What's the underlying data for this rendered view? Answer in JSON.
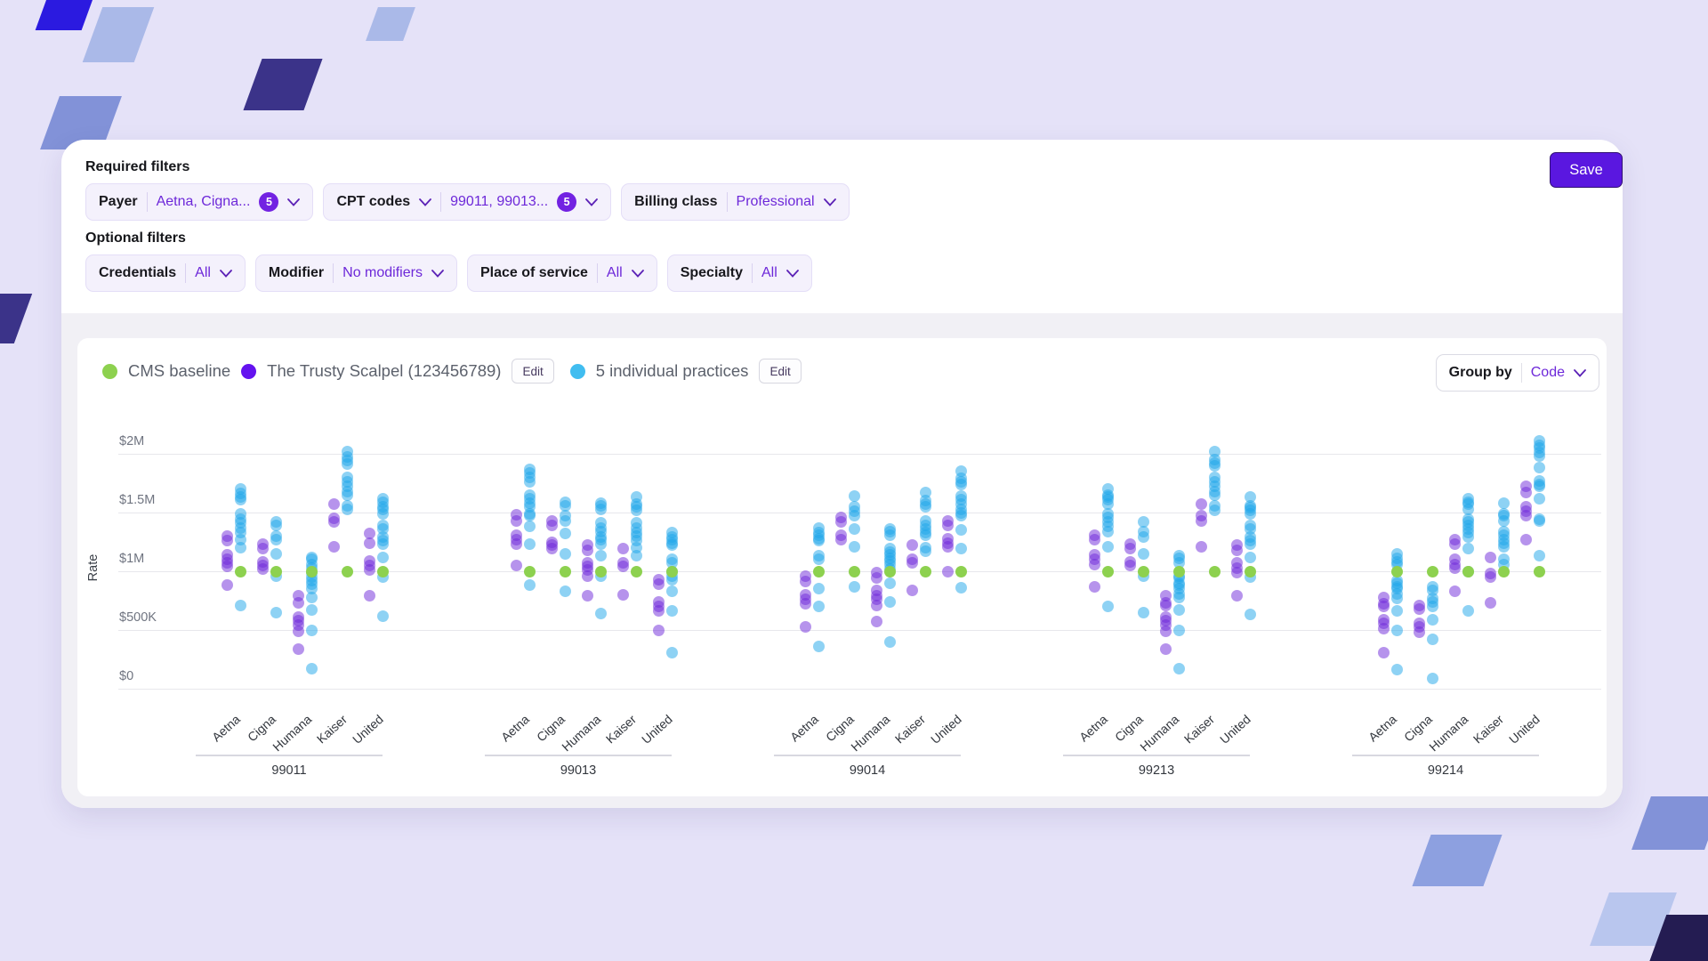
{
  "header": {
    "required_filters_label": "Required filters",
    "optional_filters_label": "Optional filters",
    "save_label": "Save"
  },
  "filters": {
    "payer": {
      "label": "Payer",
      "value": "Aetna, Cigna...",
      "count": "5"
    },
    "cpt": {
      "label": "CPT codes",
      "value": "99011, 99013...",
      "count": "5"
    },
    "billing": {
      "label": "Billing class",
      "value": "Professional"
    },
    "credentials": {
      "label": "Credentials",
      "value": "All"
    },
    "modifier": {
      "label": "Modifier",
      "value": "No modifiers"
    },
    "place": {
      "label": "Place of service",
      "value": "All"
    },
    "specialty": {
      "label": "Specialty",
      "value": "All"
    }
  },
  "legend": {
    "baseline_label": "CMS baseline",
    "org_label": "The Trusty Scalpel (123456789)",
    "practices_label": "5 individual practices",
    "edit_label": "Edit"
  },
  "group_by": {
    "label": "Group by",
    "value": "Code"
  },
  "colors": {
    "baseline": "#8dd14f",
    "org_legend": "#6413ef",
    "practices_legend": "#41bdf0",
    "org_dot": "rgba(109,40,217,0.50)",
    "practices_dot": "rgba(30,165,233,0.50)",
    "accent_purple": "#6d28d9",
    "save_button": "#5a17e0"
  },
  "chart_data": {
    "type": "scatter",
    "title": "",
    "ylabel": "Rate",
    "xlabel": "",
    "y_ticks": [
      "$2M",
      "$1.5M",
      "$1M",
      "$500K",
      "$0"
    ],
    "ylim_musd": [
      0,
      2
    ],
    "grid": true,
    "groups": [
      "99011",
      "99013",
      "99014",
      "99213",
      "99214"
    ],
    "payers": [
      "Aetna",
      "Cigna",
      "Humana",
      "Kaiser",
      "United"
    ],
    "series_names": [
      "CMS baseline",
      "The Trusty Scalpel (123456789)",
      "5 individual practices"
    ],
    "baseline_musd": 1.0,
    "points_musd": {
      "99011": {
        "Aetna": {
          "org": [
            1.3,
            1.26,
            1.14,
            1.1,
            1.07,
            1.04,
            0.88
          ],
          "practices": [
            1.7,
            1.66,
            1.63,
            1.61,
            1.49,
            1.44,
            1.41,
            1.37,
            1.33,
            1.27,
            1.2,
            0.71
          ]
        },
        "Cigna": {
          "org": [
            1.23,
            1.19,
            1.08,
            1.05,
            1.02
          ],
          "practices": [
            1.42,
            1.39,
            1.3,
            1.27,
            1.15,
            0.96,
            0.65
          ]
        },
        "Humana": {
          "org": [
            0.79,
            0.73,
            0.61,
            0.58,
            0.54,
            0.49,
            0.34
          ],
          "practices": [
            1.12,
            1.1,
            1.06,
            1.03,
            0.99,
            0.95,
            0.92,
            0.89,
            0.85,
            0.78,
            0.67,
            0.5,
            0.17
          ]
        },
        "Kaiser": {
          "org": [
            1.57,
            1.45,
            1.42,
            1.21
          ],
          "practices": [
            2.02,
            1.97,
            1.94,
            1.91,
            1.8,
            1.76,
            1.72,
            1.68,
            1.65,
            1.56,
            1.53
          ]
        },
        "United": {
          "org": [
            1.32,
            1.24,
            1.09,
            1.05,
            1.01,
            0.79
          ],
          "practices": [
            1.62,
            1.59,
            1.55,
            1.53,
            1.49,
            1.39,
            1.36,
            1.29,
            1.26,
            1.23,
            1.12,
            0.95,
            0.62
          ]
        }
      },
      "99013": {
        "Aetna": {
          "org": [
            1.48,
            1.43,
            1.31,
            1.27,
            1.23,
            1.05
          ],
          "practices": [
            1.87,
            1.84,
            1.8,
            1.76,
            1.65,
            1.62,
            1.58,
            1.55,
            1.49,
            1.47,
            1.38,
            1.23,
            0.88
          ]
        },
        "Cigna": {
          "org": [
            1.43,
            1.39,
            1.25,
            1.22,
            1.19
          ],
          "practices": [
            1.59,
            1.56,
            1.47,
            1.43,
            1.32,
            1.15,
            0.83
          ]
        },
        "Humana": {
          "org": [
            1.22,
            1.18,
            1.07,
            1.04,
            1.01,
            0.96,
            0.79
          ],
          "practices": [
            1.58,
            1.56,
            1.53,
            1.41,
            1.37,
            1.34,
            1.29,
            1.27,
            1.23,
            1.13,
            0.96,
            0.64
          ]
        },
        "Kaiser": {
          "org": [
            1.19,
            1.07,
            1.04,
            0.8
          ],
          "practices": [
            1.63,
            1.57,
            1.55,
            1.52,
            1.41,
            1.37,
            1.33,
            1.3,
            1.26,
            1.2,
            1.13
          ]
        },
        "United": {
          "org": [
            0.93,
            0.89,
            0.74,
            0.7,
            0.66,
            0.5
          ],
          "practices": [
            1.33,
            1.29,
            1.27,
            1.24,
            1.22,
            1.1,
            1.07,
            1.0,
            0.96,
            0.93,
            0.83,
            0.66,
            0.31
          ]
        }
      },
      "99014": {
        "Aetna": {
          "org": [
            0.96,
            0.91,
            0.8,
            0.76,
            0.72,
            0.53
          ],
          "practices": [
            1.37,
            1.33,
            1.31,
            1.28,
            1.26,
            1.13,
            1.1,
            0.85,
            0.7,
            0.36
          ]
        },
        "Cigna": {
          "org": [
            1.46,
            1.42,
            1.31,
            1.27
          ],
          "practices": [
            1.64,
            1.55,
            1.51,
            1.47,
            1.36,
            1.21,
            0.87
          ]
        },
        "Humana": {
          "org": [
            0.99,
            0.94,
            0.84,
            0.79,
            0.76,
            0.71,
            0.57
          ],
          "practices": [
            1.36,
            1.34,
            1.31,
            1.19,
            1.16,
            1.14,
            1.11,
            1.09,
            1.06,
            1.02,
            0.9,
            0.74,
            0.4
          ]
        },
        "Kaiser": {
          "org": [
            1.22,
            1.1,
            1.07,
            0.84
          ],
          "practices": [
            1.67,
            1.6,
            1.57,
            1.55,
            1.43,
            1.39,
            1.36,
            1.33,
            1.31,
            1.2,
            1.17
          ]
        },
        "United": {
          "org": [
            1.43,
            1.39,
            1.28,
            1.24,
            1.21,
            1.0
          ],
          "practices": [
            1.85,
            1.79,
            1.76,
            1.74,
            1.64,
            1.61,
            1.57,
            1.53,
            1.5,
            1.47,
            1.35,
            1.19,
            0.86
          ]
        }
      },
      "99213": {
        "Aetna": {
          "org": [
            1.31,
            1.27,
            1.14,
            1.1,
            1.06,
            0.87
          ],
          "practices": [
            1.7,
            1.65,
            1.63,
            1.61,
            1.57,
            1.49,
            1.46,
            1.42,
            1.38,
            1.34,
            1.21,
            0.7
          ]
        },
        "Cigna": {
          "org": [
            1.23,
            1.19,
            1.08,
            1.05
          ],
          "practices": [
            1.42,
            1.34,
            1.29,
            1.15,
            0.96,
            0.65
          ]
        },
        "Humana": {
          "org": [
            0.79,
            0.73,
            0.71,
            0.61,
            0.58,
            0.54,
            0.49,
            0.34
          ],
          "practices": [
            1.13,
            1.11,
            1.07,
            0.96,
            0.94,
            0.9,
            0.88,
            0.85,
            0.81,
            0.78,
            0.67,
            0.5,
            0.17
          ]
        },
        "Kaiser": {
          "org": [
            1.57,
            1.47,
            1.43,
            1.21
          ],
          "practices": [
            2.02,
            1.95,
            1.92,
            1.9,
            1.8,
            1.76,
            1.72,
            1.68,
            1.65,
            1.56,
            1.52
          ]
        },
        "United": {
          "org": [
            1.22,
            1.18,
            1.07,
            1.03,
            0.99,
            0.79
          ],
          "practices": [
            1.63,
            1.56,
            1.54,
            1.52,
            1.49,
            1.39,
            1.36,
            1.29,
            1.26,
            1.23,
            1.12,
            0.95,
            0.63
          ]
        }
      },
      "99214": {
        "Aetna": {
          "org": [
            0.78,
            0.72,
            0.7,
            0.59,
            0.56,
            0.51,
            0.31
          ],
          "practices": [
            1.15,
            1.11,
            1.08,
            1.06,
            0.92,
            0.9,
            0.87,
            0.85,
            0.81,
            0.77,
            0.66,
            0.5,
            0.16
          ]
        },
        "Cigna": {
          "org": [
            0.71,
            0.68,
            0.56,
            0.53,
            0.48
          ],
          "practices": [
            0.87,
            0.84,
            0.77,
            0.74,
            0.7,
            0.59,
            0.42,
            0.09
          ]
        },
        "Humana": {
          "org": [
            1.27,
            1.23,
            1.1,
            1.06,
            1.03,
            0.83
          ],
          "practices": [
            1.62,
            1.59,
            1.57,
            1.53,
            1.44,
            1.42,
            1.39,
            1.36,
            1.33,
            1.29,
            1.19,
            1.0,
            0.66
          ]
        },
        "Kaiser": {
          "org": [
            1.12,
            0.98,
            0.95,
            0.73
          ],
          "practices": [
            1.58,
            1.49,
            1.47,
            1.43,
            1.34,
            1.31,
            1.27,
            1.24,
            1.21,
            1.1,
            1.06
          ]
        },
        "United": {
          "org": [
            1.72,
            1.67,
            1.55,
            1.51,
            1.47,
            1.27
          ],
          "practices": [
            2.11,
            2.07,
            2.05,
            2.01,
            1.98,
            1.88,
            1.77,
            1.74,
            1.72,
            1.62,
            1.44,
            1.43,
            1.13
          ]
        }
      }
    }
  }
}
